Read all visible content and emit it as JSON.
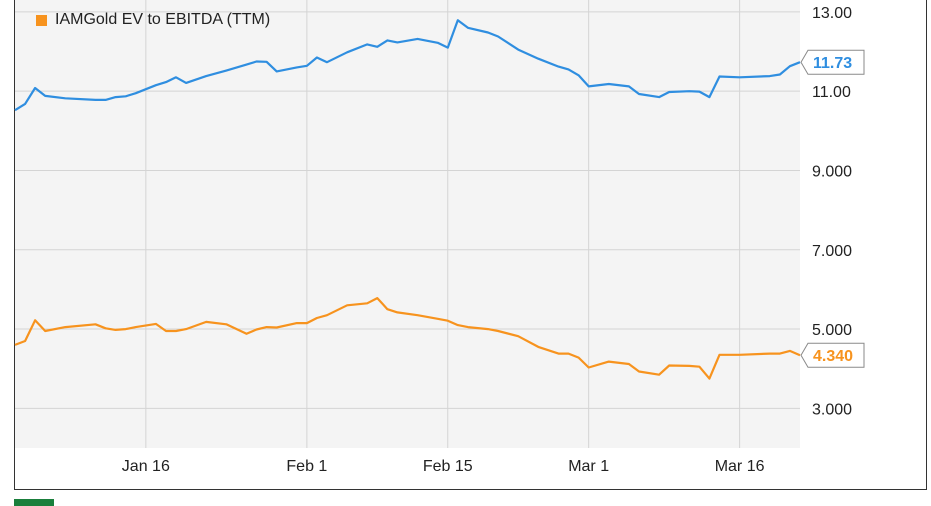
{
  "chart_data": {
    "type": "line",
    "x_ticks": [
      "Jan 16",
      "Feb 1",
      "Feb 15",
      "Mar 1",
      "Mar 16"
    ],
    "y_ticks": [
      "3.000",
      "5.000",
      "7.000",
      "9.000",
      "11.00",
      "13.00"
    ],
    "ylim": [
      2.0,
      13.3
    ],
    "grid": true,
    "legend_placement": "top-left",
    "series": [
      {
        "name": "",
        "color": "#2f8ee0",
        "end_label": "11.73",
        "end_value": 11.73,
        "x": [
          "Jan 3",
          "Jan 4",
          "Jan 5",
          "Jan 6",
          "Jan 8",
          "Jan 11",
          "Jan 12",
          "Jan 13",
          "Jan 14",
          "Jan 15",
          "Jan 17",
          "Jan 18",
          "Jan 19",
          "Jan 20",
          "Jan 22",
          "Jan 24",
          "Jan 26",
          "Jan 27",
          "Jan 28",
          "Jan 29",
          "Jan 31",
          "Feb 1",
          "Feb 2",
          "Feb 3",
          "Feb 5",
          "Feb 7",
          "Feb 8",
          "Feb 9",
          "Feb 10",
          "Feb 12",
          "Feb 14",
          "Feb 15",
          "Feb 16",
          "Feb 17",
          "Feb 19",
          "Feb 20",
          "Feb 22",
          "Feb 24",
          "Feb 26",
          "Feb 27",
          "Feb 28",
          "Mar 1",
          "Mar 3",
          "Mar 5",
          "Mar 6",
          "Mar 8",
          "Mar 9",
          "Mar 11",
          "Mar 12",
          "Mar 13",
          "Mar 14",
          "Mar 16",
          "Mar 19",
          "Mar 20",
          "Mar 21",
          "Mar 22"
        ],
        "y": [
          10.52,
          10.68,
          11.08,
          10.88,
          10.82,
          10.78,
          10.78,
          10.85,
          10.87,
          10.95,
          11.15,
          11.23,
          11.35,
          11.21,
          11.38,
          11.52,
          11.67,
          11.75,
          11.74,
          11.5,
          11.6,
          11.64,
          11.85,
          11.73,
          11.98,
          12.18,
          12.12,
          12.28,
          12.23,
          12.32,
          12.22,
          12.1,
          12.79,
          12.6,
          12.48,
          12.38,
          12.05,
          11.82,
          11.62,
          11.55,
          11.4,
          11.12,
          11.18,
          11.12,
          10.93,
          10.85,
          10.98,
          11.0,
          10.99,
          10.85,
          11.37,
          11.35,
          11.38,
          11.42,
          11.63,
          11.73
        ]
      },
      {
        "name": "IAMGold EV to EBITDA (TTM)",
        "color": "#f7931e",
        "end_label": "4.340",
        "end_value": 4.34,
        "x": [
          "Jan 3",
          "Jan 4",
          "Jan 5",
          "Jan 6",
          "Jan 8",
          "Jan 11",
          "Jan 12",
          "Jan 13",
          "Jan 14",
          "Jan 15",
          "Jan 17",
          "Jan 18",
          "Jan 19",
          "Jan 20",
          "Jan 22",
          "Jan 24",
          "Jan 26",
          "Jan 27",
          "Jan 28",
          "Jan 29",
          "Jan 31",
          "Feb 1",
          "Feb 2",
          "Feb 3",
          "Feb 5",
          "Feb 7",
          "Feb 8",
          "Feb 9",
          "Feb 10",
          "Feb 12",
          "Feb 14",
          "Feb 15",
          "Feb 16",
          "Feb 17",
          "Feb 19",
          "Feb 20",
          "Feb 22",
          "Feb 24",
          "Feb 26",
          "Feb 27",
          "Feb 28",
          "Mar 1",
          "Mar 3",
          "Mar 5",
          "Mar 6",
          "Mar 8",
          "Mar 9",
          "Mar 11",
          "Mar 12",
          "Mar 13",
          "Mar 14",
          "Mar 16",
          "Mar 19",
          "Mar 20",
          "Mar 21",
          "Mar 22"
        ],
        "y": [
          4.6,
          4.7,
          5.22,
          4.95,
          5.05,
          5.12,
          5.02,
          4.98,
          5.0,
          5.05,
          5.13,
          4.95,
          4.95,
          5.0,
          5.18,
          5.12,
          4.88,
          4.99,
          5.05,
          5.04,
          5.15,
          5.15,
          5.28,
          5.35,
          5.6,
          5.65,
          5.78,
          5.5,
          5.42,
          5.35,
          5.26,
          5.21,
          5.1,
          5.05,
          5.0,
          4.95,
          4.82,
          4.55,
          4.38,
          4.38,
          4.28,
          4.03,
          4.18,
          4.12,
          3.93,
          3.85,
          4.08,
          4.07,
          4.05,
          3.75,
          4.35,
          4.35,
          4.38,
          4.38,
          4.45,
          4.34
        ]
      }
    ]
  }
}
